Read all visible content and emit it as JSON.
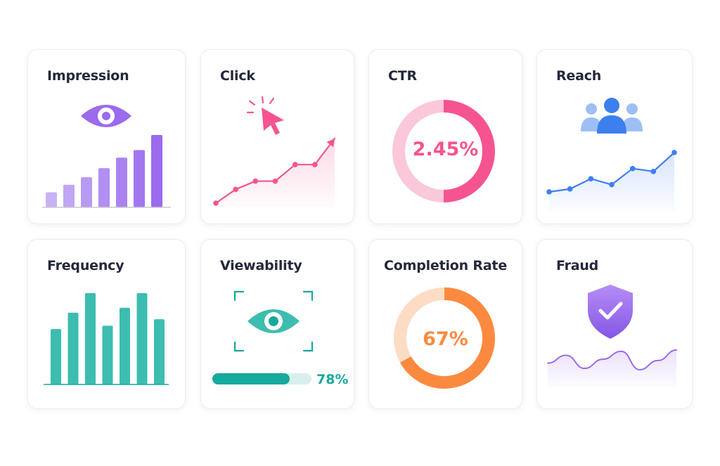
{
  "colors": {
    "purple": "#9a6bed",
    "purple_light": "#c9b2f6",
    "pink": "#f55491",
    "pink_light": "#fbc7db",
    "blue": "#3e7ff0",
    "blue_light": "#9dbff5",
    "teal": "#3cbdb0",
    "teal_dark": "#16a99d",
    "orange": "#fb8a3f",
    "orange_light": "#fddcc4",
    "text": "#24283a"
  },
  "cards": {
    "impression": {
      "title": "Impression",
      "icon": "eye-icon"
    },
    "click": {
      "title": "Click",
      "icon": "cursor-click-icon"
    },
    "ctr": {
      "title": "CTR",
      "value_label": "2.45%"
    },
    "reach": {
      "title": "Reach",
      "icon": "users-icon"
    },
    "frequency": {
      "title": "Frequency"
    },
    "viewability": {
      "title": "Viewability",
      "icon": "eye-scan-icon",
      "percent_label": "78%"
    },
    "completion_rate": {
      "title": "Completion Rate",
      "value_label": "67%"
    },
    "fraud": {
      "title": "Fraud",
      "icon": "shield-check-icon"
    }
  },
  "chart_data": [
    {
      "card": "impression",
      "type": "bar",
      "values": [
        1,
        1.5,
        2,
        2.6,
        3.3,
        3.8,
        4.8
      ]
    },
    {
      "card": "click",
      "type": "area",
      "values": [
        1,
        2,
        2.6,
        2.6,
        3.8,
        3.8,
        5.7
      ]
    },
    {
      "card": "ctr",
      "type": "pie",
      "values": [
        0.5,
        0.5
      ]
    },
    {
      "card": "reach",
      "type": "area",
      "values": [
        1,
        1.2,
        1.9,
        1.5,
        2.6,
        2.4,
        3.7
      ]
    },
    {
      "card": "frequency",
      "type": "bar",
      "values": [
        3.4,
        4.4,
        5.6,
        3.6,
        4.7,
        5.6,
        4.0
      ]
    },
    {
      "card": "viewability",
      "type": "progress",
      "value": 0.78
    },
    {
      "card": "completion_rate",
      "type": "pie",
      "values": [
        0.67,
        0.33
      ]
    },
    {
      "card": "fraud",
      "type": "area",
      "values": [
        2,
        2.6,
        1.6,
        2.3,
        2.9,
        1.5,
        2.2,
        3.0
      ]
    }
  ]
}
